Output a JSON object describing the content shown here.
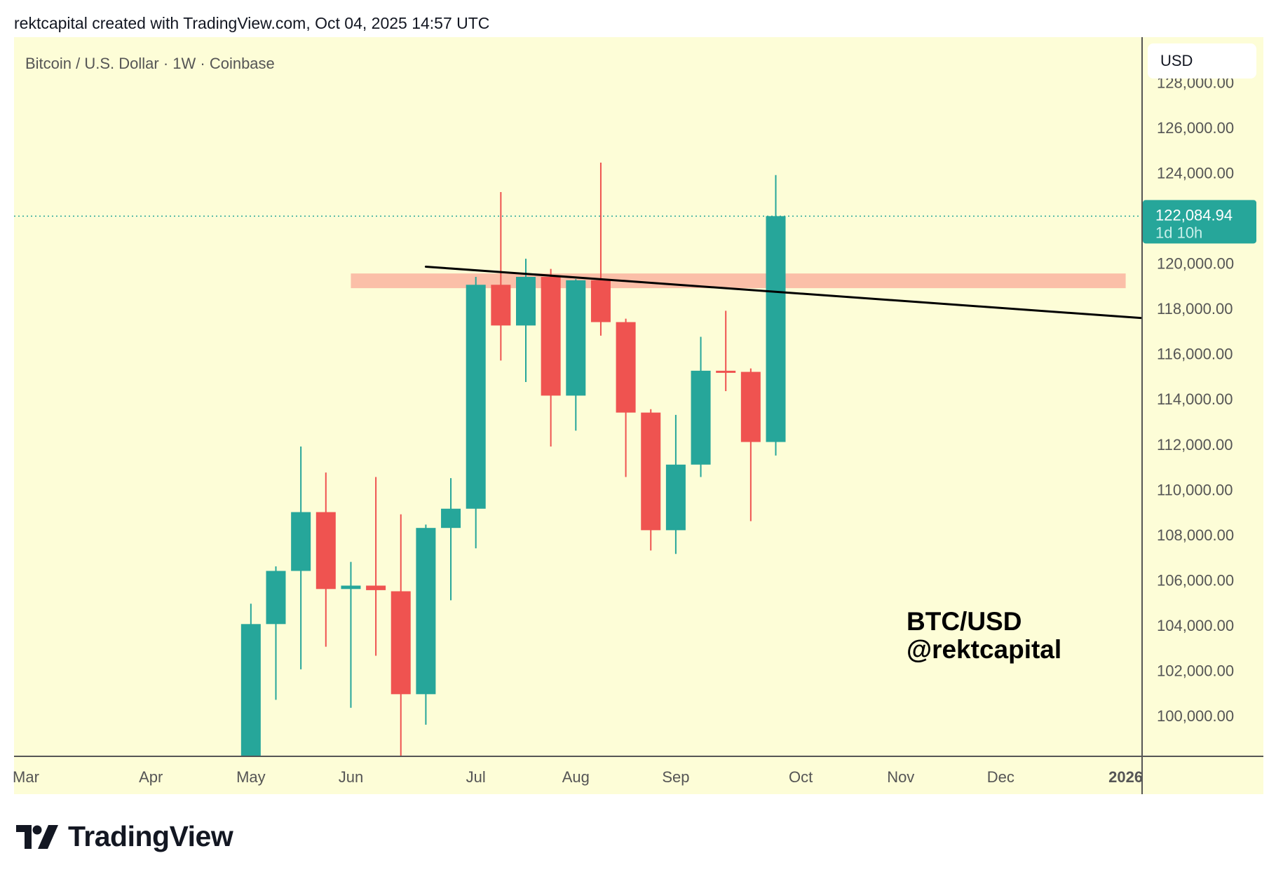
{
  "header": {
    "caption": "rektcapital created with TradingView.com, Oct 04, 2025 14:57 UTC"
  },
  "legend": {
    "symbol_title": "Bitcoin / U.S. Dollar · 1W · Coinbase"
  },
  "currency_button": "USD",
  "watermark": {
    "line1": "BTC/USD",
    "line2": "@rektcapital"
  },
  "branding": {
    "logo_text": "TradingView"
  },
  "colors": {
    "background": "#fdfdd7",
    "up": "#26a69a",
    "down": "#ef5350",
    "zone": "#fbbfa8",
    "trendline": "#000000",
    "axis": "#555555"
  },
  "chart_data": {
    "type": "candlestick",
    "title": "Bitcoin / U.S. Dollar · 1W · Coinbase",
    "interval": "1W",
    "ylim": [
      98000,
      128700
    ],
    "xlim": [
      "2025-03-03",
      "2026-01-12"
    ],
    "y_ticks": [
      {
        "value": 100000,
        "label": "100,000.00"
      },
      {
        "value": 102000,
        "label": "102,000.00"
      },
      {
        "value": 104000,
        "label": "104,000.00"
      },
      {
        "value": 106000,
        "label": "106,000.00"
      },
      {
        "value": 108000,
        "label": "108,000.00"
      },
      {
        "value": 110000,
        "label": "110,000.00"
      },
      {
        "value": 112000,
        "label": "112,000.00"
      },
      {
        "value": 114000,
        "label": "114,000.00"
      },
      {
        "value": 116000,
        "label": "116,000.00"
      },
      {
        "value": 118000,
        "label": "118,000.00"
      },
      {
        "value": 120000,
        "label": "120,000.00"
      },
      {
        "value": 124000,
        "label": "124,000.00"
      },
      {
        "value": 126000,
        "label": "126,000.00"
      },
      {
        "value": 128000,
        "label": "128,000.00"
      }
    ],
    "x_ticks": [
      {
        "date": "2025-03-03",
        "label": "Mar",
        "bold": false
      },
      {
        "date": "2025-04-07",
        "label": "Apr",
        "bold": false
      },
      {
        "date": "2025-05-05",
        "label": "May",
        "bold": false
      },
      {
        "date": "2025-06-02",
        "label": "Jun",
        "bold": false
      },
      {
        "date": "2025-07-07",
        "label": "Jul",
        "bold": false
      },
      {
        "date": "2025-08-04",
        "label": "Aug",
        "bold": false
      },
      {
        "date": "2025-09-01",
        "label": "Sep",
        "bold": false
      },
      {
        "date": "2025-10-06",
        "label": "Oct",
        "bold": false
      },
      {
        "date": "2025-11-03",
        "label": "Nov",
        "bold": false
      },
      {
        "date": "2025-12-01",
        "label": "Dec",
        "bold": false
      },
      {
        "date": "2026-01-05",
        "label": "2026",
        "bold": true
      }
    ],
    "candles": [
      {
        "date": "2025-05-05",
        "o": 93700,
        "h": 104950,
        "l": 93400,
        "c": 104050
      },
      {
        "date": "2025-05-12",
        "o": 104050,
        "h": 106600,
        "l": 100700,
        "c": 106400
      },
      {
        "date": "2025-05-19",
        "o": 106400,
        "h": 111900,
        "l": 102050,
        "c": 109000
      },
      {
        "date": "2025-05-26",
        "o": 109000,
        "h": 110750,
        "l": 103050,
        "c": 105600
      },
      {
        "date": "2025-06-02",
        "o": 105600,
        "h": 106800,
        "l": 100350,
        "c": 105750
      },
      {
        "date": "2025-06-09",
        "o": 105750,
        "h": 110550,
        "l": 102650,
        "c": 105550
      },
      {
        "date": "2025-06-16",
        "o": 105500,
        "h": 108900,
        "l": 98200,
        "c": 100950
      },
      {
        "date": "2025-06-23",
        "o": 100950,
        "h": 108450,
        "l": 99600,
        "c": 108300
      },
      {
        "date": "2025-06-30",
        "o": 108300,
        "h": 110500,
        "l": 105100,
        "c": 109150
      },
      {
        "date": "2025-07-07",
        "o": 109150,
        "h": 119400,
        "l": 107400,
        "c": 119050
      },
      {
        "date": "2025-07-14",
        "o": 119050,
        "h": 123150,
        "l": 115700,
        "c": 117250
      },
      {
        "date": "2025-07-21",
        "o": 117250,
        "h": 120200,
        "l": 114750,
        "c": 119400
      },
      {
        "date": "2025-07-28",
        "o": 119400,
        "h": 119750,
        "l": 111900,
        "c": 114150
      },
      {
        "date": "2025-08-04",
        "o": 114150,
        "h": 119300,
        "l": 112600,
        "c": 119250
      },
      {
        "date": "2025-08-11",
        "o": 119250,
        "h": 124450,
        "l": 116800,
        "c": 117400
      },
      {
        "date": "2025-08-18",
        "o": 117400,
        "h": 117550,
        "l": 110550,
        "c": 113400
      },
      {
        "date": "2025-08-25",
        "o": 113400,
        "h": 113550,
        "l": 107300,
        "c": 108200
      },
      {
        "date": "2025-09-01",
        "o": 108200,
        "h": 113300,
        "l": 107150,
        "c": 111100
      },
      {
        "date": "2025-09-08",
        "o": 111100,
        "h": 116750,
        "l": 110550,
        "c": 115250
      },
      {
        "date": "2025-09-15",
        "o": 115250,
        "h": 117900,
        "l": 114350,
        "c": 115200
      },
      {
        "date": "2025-09-22",
        "o": 115200,
        "h": 115350,
        "l": 108600,
        "c": 112100
      },
      {
        "date": "2025-09-29",
        "o": 112100,
        "h": 123900,
        "l": 111500,
        "c": 122084.94
      }
    ],
    "last_price": {
      "value": 122084.94,
      "label": "122,084.94",
      "countdown": "1d 10h"
    },
    "resistance_zone": {
      "from_date": "2025-06-02",
      "to_date": "2026-01-05",
      "low": 118900,
      "high": 119550
    },
    "trendline": {
      "points": [
        {
          "date": "2025-06-23",
          "price": 119850
        },
        {
          "date": "2026-01-12",
          "price": 117550
        }
      ]
    }
  }
}
